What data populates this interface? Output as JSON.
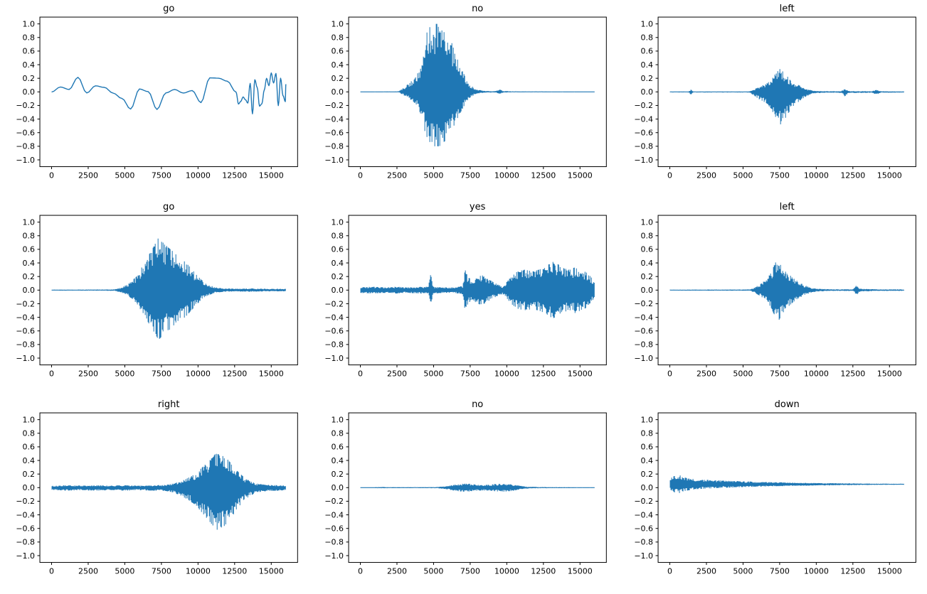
{
  "figure": {
    "rows": 3,
    "cols": 3,
    "background": "#ffffff"
  },
  "style": {
    "line_color": "#1f77b4",
    "axis_color": "#000000",
    "text_color": "#000000"
  },
  "axes": {
    "xticks": [
      0,
      2500,
      5000,
      7500,
      10000,
      12500,
      15000
    ],
    "xtick_labels": [
      "0",
      "2500",
      "5000",
      "7500",
      "10000",
      "12500",
      "15000"
    ],
    "yticks": [
      1.0,
      0.8,
      0.6,
      0.4,
      0.2,
      0.0,
      -0.2,
      -0.4,
      -0.6,
      -0.8,
      -1.0
    ],
    "ytick_labels": [
      "1.0",
      "0.8",
      "0.6",
      "0.4",
      "0.2",
      "0.0",
      "−0.2",
      "−0.4",
      "−0.6",
      "−0.8",
      "−1.0"
    ]
  },
  "chart_data": [
    {
      "type": "line",
      "title": "go",
      "render": "smooth",
      "xlim": [
        -800,
        16800
      ],
      "ylim": [
        -1.1,
        1.1
      ],
      "color": "#1f77b4",
      "dc": 0,
      "ctrl_step": 600,
      "dense_from": 12600,
      "dense_step": 160,
      "envelope": [
        [
          0,
          0.3
        ],
        [
          500,
          0.45
        ],
        [
          1200,
          0.3
        ],
        [
          2500,
          0.15
        ],
        [
          4500,
          0.15
        ],
        [
          5500,
          0.28
        ],
        [
          7000,
          0.3
        ],
        [
          8500,
          0.2
        ],
        [
          9500,
          0.15
        ],
        [
          10500,
          0.3
        ],
        [
          11300,
          0.45
        ],
        [
          12000,
          0.3
        ],
        [
          12800,
          0.3
        ],
        [
          13500,
          0.35
        ],
        [
          14500,
          0.3
        ],
        [
          16000,
          0.3
        ]
      ]
    },
    {
      "type": "line",
      "title": "no",
      "render": "fill",
      "xlim": [
        -800,
        16800
      ],
      "ylim": [
        -1.1,
        1.1
      ],
      "color": "#1f77b4",
      "dc": 0,
      "pos_scale": 1.0,
      "neg_scale": 0.8,
      "envelope": [
        [
          0,
          0.006
        ],
        [
          2600,
          0.008
        ],
        [
          2900,
          0.05
        ],
        [
          3300,
          0.12
        ],
        [
          3800,
          0.22
        ],
        [
          4200,
          0.45
        ],
        [
          4500,
          0.85
        ],
        [
          4800,
          1.0
        ],
        [
          5400,
          1.0
        ],
        [
          5800,
          0.9
        ],
        [
          6200,
          0.75
        ],
        [
          6500,
          0.55
        ],
        [
          6900,
          0.35
        ],
        [
          7200,
          0.2
        ],
        [
          7500,
          0.1
        ],
        [
          7900,
          0.04
        ],
        [
          8400,
          0.015
        ],
        [
          9200,
          0.01
        ],
        [
          9500,
          0.035
        ],
        [
          9800,
          0.012
        ],
        [
          10500,
          0.008
        ],
        [
          16000,
          0.006
        ]
      ]
    },
    {
      "type": "line",
      "title": "left",
      "render": "fill",
      "xlim": [
        -800,
        16800
      ],
      "ylim": [
        -1.1,
        1.1
      ],
      "color": "#1f77b4",
      "dc": 0,
      "pos_scale": 0.75,
      "neg_scale": 1.1,
      "envelope": [
        [
          0,
          0.007
        ],
        [
          1300,
          0.008
        ],
        [
          1450,
          0.045
        ],
        [
          1600,
          0.008
        ],
        [
          5400,
          0.008
        ],
        [
          5700,
          0.04
        ],
        [
          6100,
          0.1
        ],
        [
          6500,
          0.15
        ],
        [
          6900,
          0.22
        ],
        [
          7200,
          0.35
        ],
        [
          7500,
          0.45
        ],
        [
          7800,
          0.38
        ],
        [
          8100,
          0.28
        ],
        [
          8500,
          0.18
        ],
        [
          9000,
          0.1
        ],
        [
          9400,
          0.05
        ],
        [
          9800,
          0.02
        ],
        [
          10500,
          0.012
        ],
        [
          11700,
          0.012
        ],
        [
          11950,
          0.06
        ],
        [
          12200,
          0.015
        ],
        [
          13800,
          0.012
        ],
        [
          14100,
          0.04
        ],
        [
          14400,
          0.012
        ],
        [
          16000,
          0.008
        ]
      ]
    },
    {
      "type": "line",
      "title": "go",
      "render": "fill",
      "xlim": [
        -800,
        16800
      ],
      "ylim": [
        -1.1,
        1.1
      ],
      "color": "#1f77b4",
      "dc": 0,
      "pos_scale": 1.0,
      "neg_scale": 0.95,
      "envelope": [
        [
          0,
          0.007
        ],
        [
          2000,
          0.008
        ],
        [
          4300,
          0.01
        ],
        [
          4800,
          0.04
        ],
        [
          5300,
          0.1
        ],
        [
          5800,
          0.2
        ],
        [
          6200,
          0.35
        ],
        [
          6600,
          0.5
        ],
        [
          7000,
          0.65
        ],
        [
          7300,
          0.77
        ],
        [
          7600,
          0.7
        ],
        [
          8000,
          0.62
        ],
        [
          8400,
          0.55
        ],
        [
          8800,
          0.48
        ],
        [
          9200,
          0.4
        ],
        [
          9600,
          0.3
        ],
        [
          10000,
          0.2
        ],
        [
          10400,
          0.12
        ],
        [
          10800,
          0.07
        ],
        [
          11200,
          0.04
        ],
        [
          11800,
          0.025
        ],
        [
          12500,
          0.02
        ],
        [
          13500,
          0.025
        ],
        [
          14500,
          0.02
        ],
        [
          16000,
          0.018
        ]
      ]
    },
    {
      "type": "line",
      "title": "yes",
      "render": "fill",
      "xlim": [
        -800,
        16800
      ],
      "ylim": [
        -1.1,
        1.1
      ],
      "color": "#1f77b4",
      "dc": 0,
      "pos_scale": 1.0,
      "neg_scale": 1.0,
      "envelope": [
        [
          0,
          0.04
        ],
        [
          800,
          0.05
        ],
        [
          1600,
          0.04
        ],
        [
          2400,
          0.05
        ],
        [
          3200,
          0.04
        ],
        [
          4000,
          0.05
        ],
        [
          4650,
          0.05
        ],
        [
          4800,
          0.26
        ],
        [
          4950,
          0.05
        ],
        [
          5600,
          0.04
        ],
        [
          6400,
          0.04
        ],
        [
          7000,
          0.06
        ],
        [
          7150,
          0.3
        ],
        [
          7400,
          0.18
        ],
        [
          7700,
          0.15
        ],
        [
          8000,
          0.2
        ],
        [
          8300,
          0.22
        ],
        [
          8600,
          0.18
        ],
        [
          9000,
          0.13
        ],
        [
          9400,
          0.08
        ],
        [
          9700,
          0.06
        ],
        [
          10000,
          0.12
        ],
        [
          10300,
          0.2
        ],
        [
          10700,
          0.27
        ],
        [
          11200,
          0.3
        ],
        [
          11700,
          0.28
        ],
        [
          12200,
          0.3
        ],
        [
          12700,
          0.35
        ],
        [
          13100,
          0.42
        ],
        [
          13500,
          0.38
        ],
        [
          13900,
          0.32
        ],
        [
          14300,
          0.3
        ],
        [
          14700,
          0.34
        ],
        [
          15100,
          0.3
        ],
        [
          15500,
          0.25
        ],
        [
          15800,
          0.18
        ],
        [
          16000,
          0.1
        ]
      ]
    },
    {
      "type": "line",
      "title": "left",
      "render": "fill",
      "xlim": [
        -800,
        16800
      ],
      "ylim": [
        -1.1,
        1.1
      ],
      "color": "#1f77b4",
      "dc": 0,
      "pos_scale": 1.0,
      "neg_scale": 1.0,
      "envelope": [
        [
          0,
          0.007
        ],
        [
          5500,
          0.009
        ],
        [
          5800,
          0.04
        ],
        [
          6200,
          0.09
        ],
        [
          6600,
          0.16
        ],
        [
          6900,
          0.25
        ],
        [
          7200,
          0.4
        ],
        [
          7400,
          0.46
        ],
        [
          7700,
          0.35
        ],
        [
          8000,
          0.26
        ],
        [
          8400,
          0.18
        ],
        [
          8800,
          0.12
        ],
        [
          9200,
          0.07
        ],
        [
          9600,
          0.04
        ],
        [
          10000,
          0.02
        ],
        [
          11000,
          0.012
        ],
        [
          12500,
          0.012
        ],
        [
          12750,
          0.07
        ],
        [
          13000,
          0.02
        ],
        [
          14000,
          0.012
        ],
        [
          16000,
          0.01
        ]
      ]
    },
    {
      "type": "line",
      "title": "right",
      "render": "fill",
      "xlim": [
        -800,
        16800
      ],
      "ylim": [
        -1.1,
        1.1
      ],
      "color": "#1f77b4",
      "dc": 0,
      "pos_scale": 1.0,
      "neg_scale": 1.25,
      "envelope": [
        [
          0,
          0.025
        ],
        [
          1000,
          0.035
        ],
        [
          2000,
          0.03
        ],
        [
          3000,
          0.035
        ],
        [
          4000,
          0.03
        ],
        [
          5000,
          0.035
        ],
        [
          6000,
          0.03
        ],
        [
          7000,
          0.035
        ],
        [
          7800,
          0.04
        ],
        [
          8300,
          0.06
        ],
        [
          8800,
          0.09
        ],
        [
          9300,
          0.14
        ],
        [
          9800,
          0.2
        ],
        [
          10300,
          0.3
        ],
        [
          10800,
          0.4
        ],
        [
          11200,
          0.5
        ],
        [
          11600,
          0.48
        ],
        [
          12000,
          0.42
        ],
        [
          12400,
          0.32
        ],
        [
          12800,
          0.22
        ],
        [
          13200,
          0.14
        ],
        [
          13600,
          0.09
        ],
        [
          14000,
          0.06
        ],
        [
          14500,
          0.045
        ],
        [
          15000,
          0.04
        ],
        [
          16000,
          0.03
        ]
      ]
    },
    {
      "type": "line",
      "title": "no",
      "render": "fill",
      "xlim": [
        -800,
        16800
      ],
      "ylim": [
        -1.1,
        1.1
      ],
      "color": "#1f77b4",
      "dc": 0,
      "pos_scale": 1.0,
      "neg_scale": 1.0,
      "envelope": [
        [
          0,
          0.006
        ],
        [
          1000,
          0.007
        ],
        [
          1500,
          0.01
        ],
        [
          2000,
          0.007
        ],
        [
          5200,
          0.008
        ],
        [
          5800,
          0.02
        ],
        [
          6300,
          0.04
        ],
        [
          6800,
          0.055
        ],
        [
          7300,
          0.06
        ],
        [
          7800,
          0.05
        ],
        [
          8300,
          0.04
        ],
        [
          8800,
          0.045
        ],
        [
          9300,
          0.055
        ],
        [
          9800,
          0.06
        ],
        [
          10300,
          0.05
        ],
        [
          10700,
          0.035
        ],
        [
          11100,
          0.02
        ],
        [
          11500,
          0.012
        ],
        [
          12500,
          0.008
        ],
        [
          16000,
          0.006
        ]
      ]
    },
    {
      "type": "line",
      "title": "down",
      "render": "fill",
      "xlim": [
        -800,
        16800
      ],
      "ylim": [
        -1.1,
        1.1
      ],
      "color": "#1f77b4",
      "dc": 0.05,
      "pos_scale": 1.0,
      "neg_scale": 1.0,
      "envelope": [
        [
          0,
          0.09
        ],
        [
          300,
          0.12
        ],
        [
          700,
          0.13
        ],
        [
          1000,
          0.1
        ],
        [
          1500,
          0.08
        ],
        [
          2000,
          0.07
        ],
        [
          2500,
          0.065
        ],
        [
          3000,
          0.06
        ],
        [
          4000,
          0.05
        ],
        [
          5000,
          0.042
        ],
        [
          6000,
          0.036
        ],
        [
          7000,
          0.03
        ],
        [
          8000,
          0.026
        ],
        [
          9000,
          0.022
        ],
        [
          10000,
          0.018
        ],
        [
          11000,
          0.016
        ],
        [
          12000,
          0.013
        ],
        [
          13000,
          0.011
        ],
        [
          14000,
          0.009
        ],
        [
          15000,
          0.008
        ],
        [
          16000,
          0.007
        ]
      ]
    }
  ]
}
